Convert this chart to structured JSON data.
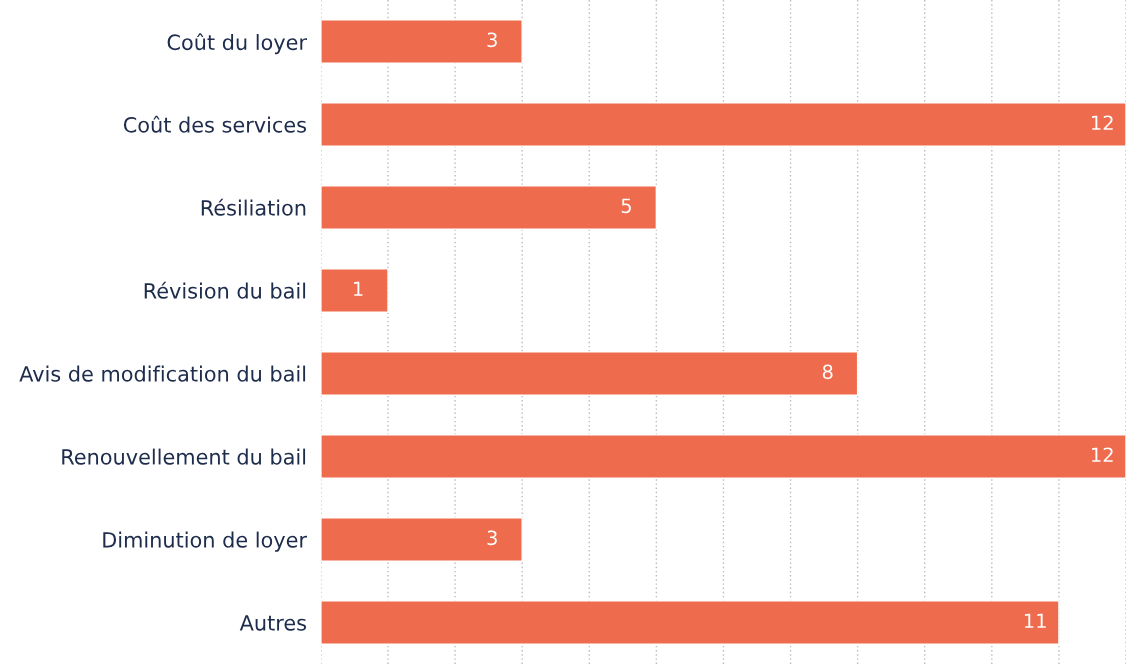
{
  "chart_data": {
    "type": "bar",
    "orientation": "horizontal",
    "categories": [
      "Coût du loyer",
      "Coût des services",
      "Résiliation",
      "Révision du bail",
      "Avis de modification du bail",
      "Renouvellement du bail",
      "Diminution de loyer",
      "Autres"
    ],
    "values": [
      3,
      12,
      5,
      1,
      8,
      12,
      3,
      11
    ],
    "color": "#ee6b4d",
    "xlim": [
      0,
      12
    ],
    "xticks": [
      {
        "value": 0,
        "label": null
      },
      {
        "value": 1,
        "label": null
      },
      {
        "value": 2,
        "label": null
      },
      {
        "value": 3,
        "label": null
      },
      {
        "value": 4,
        "label": null
      },
      {
        "value": 5,
        "label": null
      },
      {
        "value": 6,
        "label": null
      },
      {
        "value": 7,
        "label": null
      },
      {
        "value": 8,
        "label": null
      },
      {
        "value": 9,
        "label": null
      },
      {
        "value": 10,
        "label": null
      },
      {
        "value": 11,
        "label": null
      },
      {
        "value": 12,
        "label": null
      }
    ],
    "grid": "x",
    "tick_labels": "y",
    "data_labels": true
  }
}
